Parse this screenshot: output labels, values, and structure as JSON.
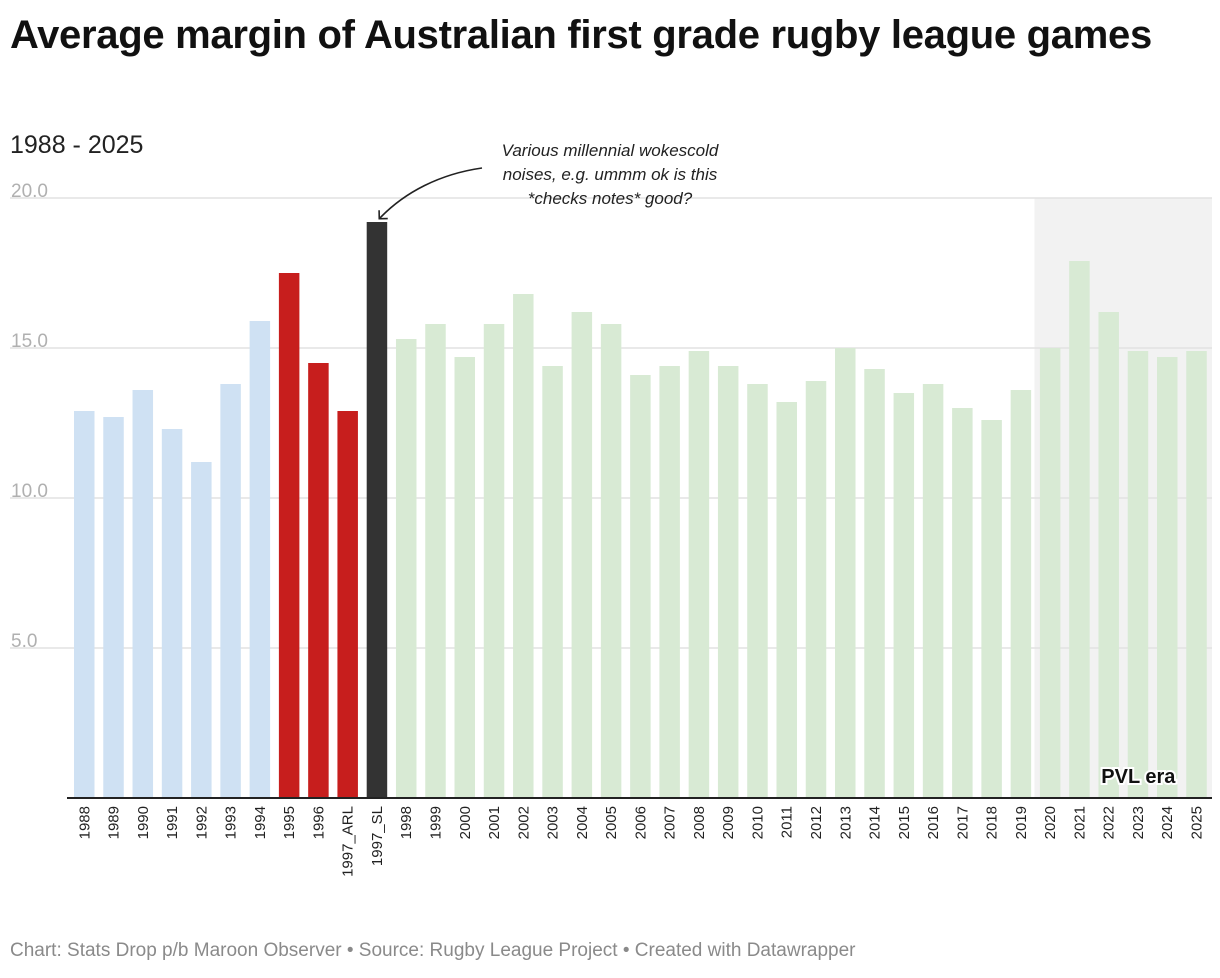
{
  "title": "Average margin of Australian first grade rugby league games",
  "subtitle": "1988 - 2025",
  "footer": "Chart: Stats Drop p/b Maroon Observer • Source: Rugby League Project • Created with Datawrapper",
  "colors": {
    "pre_superleague": "#cfe1f3",
    "arl_split": "#c71e1d",
    "super_league": "#333333",
    "post_split": "#d8ead4",
    "pvl_era_bg": "#f2f2f2",
    "gridline": "#e2e2e2",
    "axis": "#222222"
  },
  "chart_data": {
    "type": "bar",
    "title": "Average margin of Australian first grade rugby league games",
    "subtitle": "1988 - 2025",
    "xlabel": "",
    "ylabel": "",
    "ylim": [
      0,
      20
    ],
    "yticks": [
      5,
      10,
      15,
      20
    ],
    "ytick_labels": [
      "5.0",
      "10.0",
      "15.0",
      "20.0"
    ],
    "grid": true,
    "categories": [
      "1988",
      "1989",
      "1990",
      "1991",
      "1992",
      "1993",
      "1994",
      "1995",
      "1996",
      "1997_ARL",
      "1997_SL",
      "1998",
      "1999",
      "2000",
      "2001",
      "2002",
      "2003",
      "2004",
      "2005",
      "2006",
      "2007",
      "2008",
      "2009",
      "2010",
      "2011",
      "2012",
      "2013",
      "2014",
      "2015",
      "2016",
      "2017",
      "2018",
      "2019",
      "2020",
      "2021",
      "2022",
      "2023",
      "2024",
      "2025"
    ],
    "values": [
      12.9,
      12.7,
      13.6,
      12.3,
      11.2,
      13.8,
      15.9,
      17.5,
      14.5,
      12.9,
      19.2,
      15.3,
      15.8,
      14.7,
      15.8,
      16.8,
      14.4,
      16.2,
      15.8,
      14.1,
      14.4,
      14.9,
      14.4,
      13.8,
      13.2,
      13.9,
      15.0,
      14.3,
      13.5,
      13.8,
      13.0,
      12.6,
      13.6,
      15.0,
      17.9,
      16.2,
      14.9,
      14.7,
      14.9
    ],
    "bar_groups": [
      "pre_superleague",
      "pre_superleague",
      "pre_superleague",
      "pre_superleague",
      "pre_superleague",
      "pre_superleague",
      "pre_superleague",
      "arl_split",
      "arl_split",
      "arl_split",
      "super_league",
      "post_split",
      "post_split",
      "post_split",
      "post_split",
      "post_split",
      "post_split",
      "post_split",
      "post_split",
      "post_split",
      "post_split",
      "post_split",
      "post_split",
      "post_split",
      "post_split",
      "post_split",
      "post_split",
      "post_split",
      "post_split",
      "post_split",
      "post_split",
      "post_split",
      "post_split",
      "post_split",
      "post_split",
      "post_split",
      "post_split",
      "post_split",
      "post_split"
    ],
    "highlight_range": {
      "from": "2020",
      "to": "2025",
      "label": "PVL era"
    },
    "annotation": {
      "target": "1997_SL",
      "lines": [
        "Various millennial wokescold",
        "noises, e.g. ummm ok is this",
        "*checks notes* good?"
      ]
    }
  }
}
